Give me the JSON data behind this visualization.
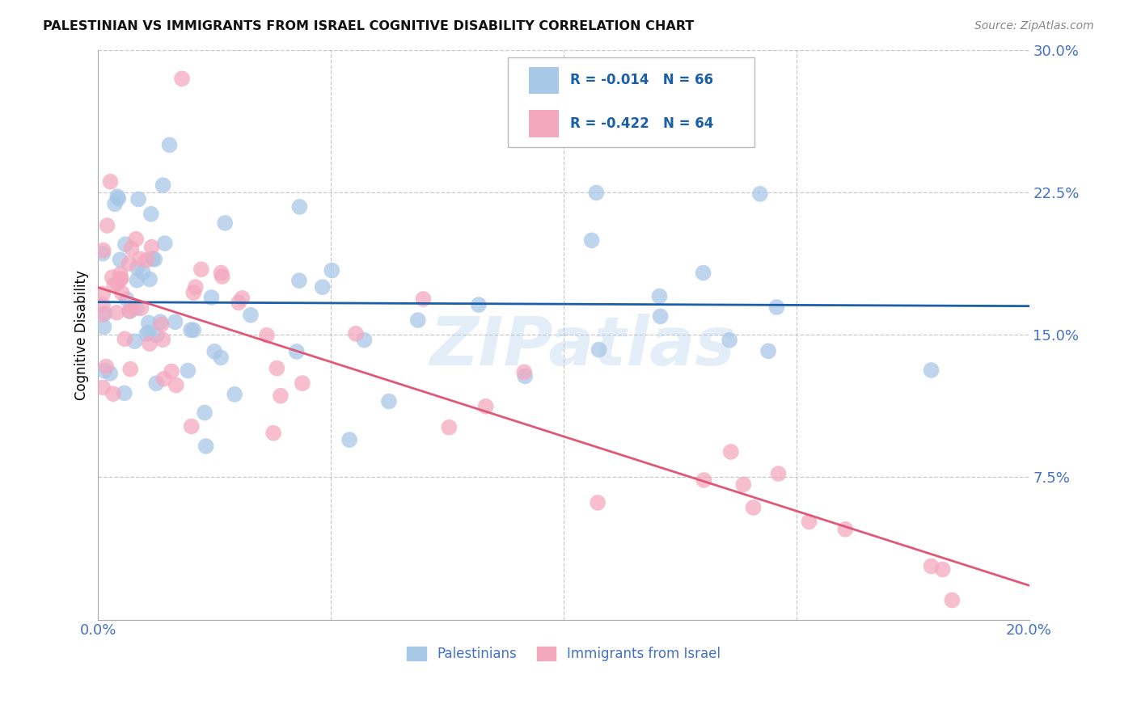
{
  "title": "PALESTINIAN VS IMMIGRANTS FROM ISRAEL COGNITIVE DISABILITY CORRELATION CHART",
  "source": "Source: ZipAtlas.com",
  "ylabel": "Cognitive Disability",
  "x_min": 0.0,
  "x_max": 0.2,
  "y_min": 0.0,
  "y_max": 0.3,
  "color_blue": "#a8c8e8",
  "color_pink": "#f4a8c0",
  "line_blue": "#1a5fa8",
  "line_pink": "#e05878",
  "legend_r_blue": "-0.014",
  "legend_n_blue": "66",
  "legend_r_pink": "-0.422",
  "legend_n_pink": "64",
  "label_blue": "Palestinians",
  "label_pink": "Immigrants from Israel",
  "watermark": "ZIPatlas",
  "background_color": "#ffffff",
  "grid_color": "#bbbbbb",
  "blue_line_y_start": 0.16,
  "blue_line_y_end": 0.158,
  "pink_line_y_start": 0.175,
  "pink_line_y_end": 0.018
}
